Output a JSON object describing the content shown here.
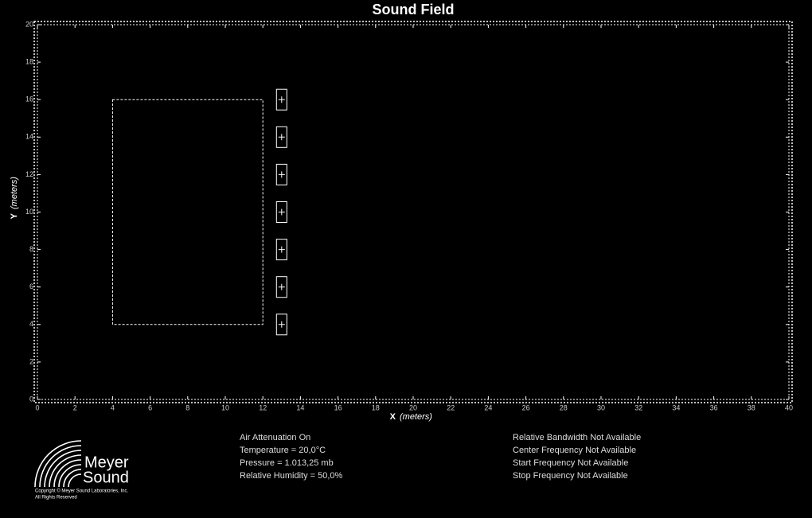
{
  "plot": {
    "title": "Sound Field",
    "xlabel": "X",
    "ylabel": "Y",
    "unit": "(meters)",
    "xlim": [
      0,
      40
    ],
    "ylim": [
      0,
      20
    ],
    "xticks": [
      0,
      2,
      4,
      6,
      8,
      10,
      12,
      14,
      16,
      18,
      20,
      22,
      24,
      26,
      28,
      30,
      32,
      34,
      36,
      38,
      40
    ],
    "yticks": [
      0,
      2,
      4,
      6,
      8,
      10,
      12,
      14,
      16,
      18,
      20
    ],
    "room": {
      "x": [
        4,
        12
      ],
      "y": [
        4,
        16
      ]
    },
    "speakers": {
      "x": [
        13,
        13,
        13,
        13,
        13,
        13,
        13
      ],
      "y": [
        4,
        6,
        8,
        10,
        12,
        14,
        16
      ]
    }
  },
  "logo": {
    "line1": "Meyer",
    "line2": "Sound",
    "copyright": "Copyright © Meyer Sound Laboratories, Inc.",
    "rights": "All Rights Reserved"
  },
  "info": {
    "environment": [
      "Air Attenuation On",
      "Temperature = 20,0°C",
      "Pressure = 1.013,25  mb",
      "Relative Humidity = 50,0%"
    ],
    "frequency": [
      "Relative Bandwidth Not Available",
      "Center Frequency Not Available",
      "Start Frequency Not Available",
      "Stop Frequency Not Available"
    ]
  }
}
